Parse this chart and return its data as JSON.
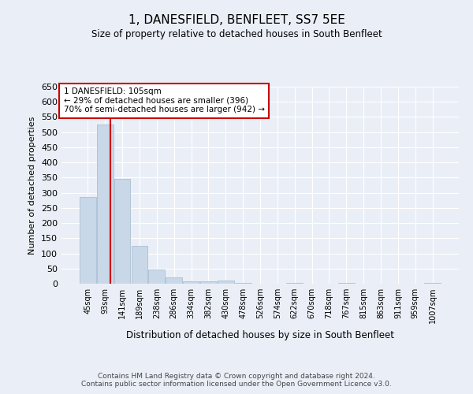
{
  "title": "1, DANESFIELD, BENFLEET, SS7 5EE",
  "subtitle": "Size of property relative to detached houses in South Benfleet",
  "xlabel": "Distribution of detached houses by size in South Benfleet",
  "ylabel": "Number of detached properties",
  "bin_labels": [
    "45sqm",
    "93sqm",
    "141sqm",
    "189sqm",
    "238sqm",
    "286sqm",
    "334sqm",
    "382sqm",
    "430sqm",
    "478sqm",
    "526sqm",
    "574sqm",
    "622sqm",
    "670sqm",
    "718sqm",
    "767sqm",
    "815sqm",
    "863sqm",
    "911sqm",
    "959sqm",
    "1007sqm"
  ],
  "bar_values": [
    285,
    524,
    346,
    125,
    48,
    20,
    7,
    7,
    10,
    2,
    0,
    0,
    3,
    0,
    0,
    3,
    0,
    0,
    0,
    0,
    3
  ],
  "bar_color": "#c8d8e8",
  "bar_edge_color": "#a0b8cc",
  "vline_x": 1.3,
  "vline_color": "#cc0000",
  "annotation_text": "1 DANESFIELD: 105sqm\n← 29% of detached houses are smaller (396)\n70% of semi-detached houses are larger (942) →",
  "annotation_box_color": "#ffffff",
  "annotation_box_edge": "#cc0000",
  "ylim": [
    0,
    650
  ],
  "yticks": [
    0,
    50,
    100,
    150,
    200,
    250,
    300,
    350,
    400,
    450,
    500,
    550,
    600,
    650
  ],
  "footer_line1": "Contains HM Land Registry data © Crown copyright and database right 2024.",
  "footer_line2": "Contains public sector information licensed under the Open Government Licence v3.0.",
  "bg_color": "#eaeff7",
  "plot_bg_color": "#eaeff7"
}
